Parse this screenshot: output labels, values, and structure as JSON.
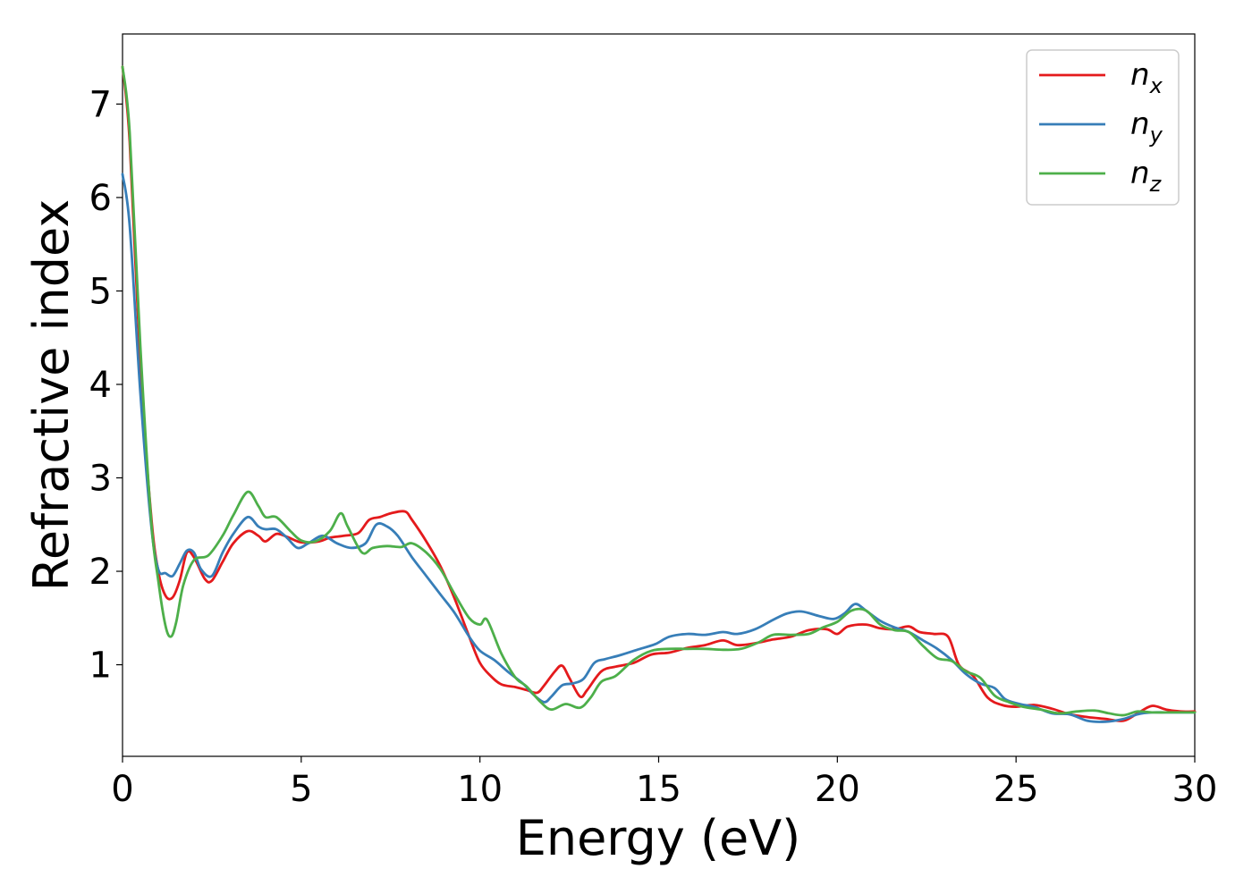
{
  "chart_data": {
    "type": "line",
    "xlabel": "Energy (eV)",
    "ylabel": "Refractive index",
    "xlim": [
      0,
      30
    ],
    "ylim": [
      0.02,
      7.75
    ],
    "xticks": [
      0,
      5,
      10,
      15,
      20,
      25,
      30
    ],
    "yticks": [
      1,
      2,
      3,
      4,
      5,
      6,
      7
    ],
    "xtick_labels": [
      "0",
      "5",
      "10",
      "15",
      "20",
      "25",
      "30"
    ],
    "ytick_labels": [
      "1",
      "2",
      "3",
      "4",
      "5",
      "6",
      "7"
    ],
    "grid": false,
    "legend_position": "top-right",
    "series": [
      {
        "name": "n",
        "subscript": "x",
        "color": "#e41a1c",
        "points": [
          [
            0,
            7.4
          ],
          [
            0.2,
            6.6
          ],
          [
            0.5,
            4.2
          ],
          [
            0.8,
            2.6
          ],
          [
            1.0,
            2.0
          ],
          [
            1.2,
            1.74
          ],
          [
            1.4,
            1.72
          ],
          [
            1.6,
            1.9
          ],
          [
            1.8,
            2.2
          ],
          [
            2.0,
            2.15
          ],
          [
            2.3,
            1.92
          ],
          [
            2.5,
            1.9
          ],
          [
            2.8,
            2.1
          ],
          [
            3.1,
            2.3
          ],
          [
            3.5,
            2.43
          ],
          [
            3.8,
            2.38
          ],
          [
            4.0,
            2.32
          ],
          [
            4.3,
            2.4
          ],
          [
            4.6,
            2.37
          ],
          [
            5.0,
            2.31
          ],
          [
            5.5,
            2.32
          ],
          [
            5.8,
            2.36
          ],
          [
            6.2,
            2.38
          ],
          [
            6.6,
            2.41
          ],
          [
            6.9,
            2.55
          ],
          [
            7.2,
            2.58
          ],
          [
            7.5,
            2.62
          ],
          [
            7.9,
            2.64
          ],
          [
            8.1,
            2.55
          ],
          [
            8.5,
            2.32
          ],
          [
            8.9,
            2.05
          ],
          [
            9.3,
            1.7
          ],
          [
            9.7,
            1.3
          ],
          [
            10.0,
            1.02
          ],
          [
            10.3,
            0.88
          ],
          [
            10.6,
            0.79
          ],
          [
            11.0,
            0.76
          ],
          [
            11.3,
            0.73
          ],
          [
            11.6,
            0.7
          ],
          [
            11.8,
            0.78
          ],
          [
            12.1,
            0.93
          ],
          [
            12.3,
            0.99
          ],
          [
            12.5,
            0.86
          ],
          [
            12.8,
            0.66
          ],
          [
            13.0,
            0.73
          ],
          [
            13.4,
            0.93
          ],
          [
            13.8,
            0.98
          ],
          [
            14.3,
            1.02
          ],
          [
            14.8,
            1.11
          ],
          [
            15.3,
            1.13
          ],
          [
            15.8,
            1.18
          ],
          [
            16.3,
            1.21
          ],
          [
            16.8,
            1.26
          ],
          [
            17.2,
            1.21
          ],
          [
            17.7,
            1.23
          ],
          [
            18.2,
            1.27
          ],
          [
            18.7,
            1.3
          ],
          [
            19.2,
            1.37
          ],
          [
            19.7,
            1.38
          ],
          [
            20.0,
            1.33
          ],
          [
            20.3,
            1.41
          ],
          [
            20.8,
            1.43
          ],
          [
            21.2,
            1.39
          ],
          [
            21.6,
            1.38
          ],
          [
            22.0,
            1.41
          ],
          [
            22.3,
            1.35
          ],
          [
            22.7,
            1.33
          ],
          [
            23.1,
            1.3
          ],
          [
            23.4,
            1.0
          ],
          [
            23.8,
            0.88
          ],
          [
            24.2,
            0.65
          ],
          [
            24.6,
            0.57
          ],
          [
            25.0,
            0.55
          ],
          [
            25.5,
            0.57
          ],
          [
            26.0,
            0.53
          ],
          [
            26.5,
            0.47
          ],
          [
            27.0,
            0.44
          ],
          [
            27.5,
            0.42
          ],
          [
            28.0,
            0.4
          ],
          [
            28.4,
            0.48
          ],
          [
            28.8,
            0.56
          ],
          [
            29.2,
            0.52
          ],
          [
            29.6,
            0.5
          ],
          [
            30.0,
            0.5
          ]
        ]
      },
      {
        "name": "n",
        "subscript": "y",
        "color": "#377eb8",
        "points": [
          [
            0,
            6.25
          ],
          [
            0.2,
            5.7
          ],
          [
            0.5,
            3.9
          ],
          [
            0.8,
            2.5
          ],
          [
            1.0,
            2.02
          ],
          [
            1.2,
            1.98
          ],
          [
            1.4,
            1.95
          ],
          [
            1.6,
            2.08
          ],
          [
            1.8,
            2.22
          ],
          [
            2.0,
            2.2
          ],
          [
            2.2,
            2.02
          ],
          [
            2.5,
            1.95
          ],
          [
            2.8,
            2.2
          ],
          [
            3.1,
            2.4
          ],
          [
            3.5,
            2.58
          ],
          [
            3.8,
            2.48
          ],
          [
            4.0,
            2.45
          ],
          [
            4.3,
            2.45
          ],
          [
            4.6,
            2.36
          ],
          [
            4.9,
            2.25
          ],
          [
            5.2,
            2.3
          ],
          [
            5.6,
            2.38
          ],
          [
            6.0,
            2.3
          ],
          [
            6.4,
            2.25
          ],
          [
            6.8,
            2.3
          ],
          [
            7.1,
            2.5
          ],
          [
            7.4,
            2.48
          ],
          [
            7.7,
            2.38
          ],
          [
            8.1,
            2.15
          ],
          [
            8.5,
            1.95
          ],
          [
            8.9,
            1.75
          ],
          [
            9.3,
            1.55
          ],
          [
            9.7,
            1.3
          ],
          [
            10.0,
            1.15
          ],
          [
            10.4,
            1.05
          ],
          [
            10.8,
            0.92
          ],
          [
            11.2,
            0.8
          ],
          [
            11.5,
            0.68
          ],
          [
            11.8,
            0.6
          ],
          [
            12.0,
            0.66
          ],
          [
            12.3,
            0.78
          ],
          [
            12.6,
            0.8
          ],
          [
            12.9,
            0.85
          ],
          [
            13.2,
            1.02
          ],
          [
            13.5,
            1.06
          ],
          [
            13.9,
            1.1
          ],
          [
            14.4,
            1.16
          ],
          [
            14.9,
            1.22
          ],
          [
            15.3,
            1.3
          ],
          [
            15.8,
            1.33
          ],
          [
            16.3,
            1.32
          ],
          [
            16.8,
            1.35
          ],
          [
            17.2,
            1.33
          ],
          [
            17.7,
            1.38
          ],
          [
            18.2,
            1.48
          ],
          [
            18.6,
            1.55
          ],
          [
            19.0,
            1.57
          ],
          [
            19.5,
            1.52
          ],
          [
            19.9,
            1.49
          ],
          [
            20.2,
            1.55
          ],
          [
            20.5,
            1.65
          ],
          [
            20.8,
            1.58
          ],
          [
            21.2,
            1.47
          ],
          [
            21.6,
            1.4
          ],
          [
            22.0,
            1.35
          ],
          [
            22.4,
            1.26
          ],
          [
            22.8,
            1.17
          ],
          [
            23.2,
            1.05
          ],
          [
            23.6,
            0.9
          ],
          [
            24.0,
            0.8
          ],
          [
            24.4,
            0.75
          ],
          [
            24.7,
            0.63
          ],
          [
            25.1,
            0.58
          ],
          [
            25.5,
            0.55
          ],
          [
            26.0,
            0.48
          ],
          [
            26.5,
            0.47
          ],
          [
            27.0,
            0.4
          ],
          [
            27.5,
            0.39
          ],
          [
            28.0,
            0.42
          ],
          [
            28.4,
            0.47
          ],
          [
            28.8,
            0.49
          ],
          [
            29.2,
            0.49
          ],
          [
            29.6,
            0.49
          ],
          [
            30.0,
            0.49
          ]
        ]
      },
      {
        "name": "n",
        "subscript": "z",
        "color": "#4daf4a",
        "points": [
          [
            0,
            7.4
          ],
          [
            0.2,
            6.7
          ],
          [
            0.5,
            4.4
          ],
          [
            0.8,
            2.55
          ],
          [
            1.0,
            1.9
          ],
          [
            1.2,
            1.42
          ],
          [
            1.35,
            1.3
          ],
          [
            1.5,
            1.45
          ],
          [
            1.7,
            1.85
          ],
          [
            2.0,
            2.12
          ],
          [
            2.4,
            2.17
          ],
          [
            2.8,
            2.38
          ],
          [
            3.1,
            2.6
          ],
          [
            3.5,
            2.85
          ],
          [
            3.8,
            2.7
          ],
          [
            4.0,
            2.58
          ],
          [
            4.3,
            2.58
          ],
          [
            4.7,
            2.43
          ],
          [
            5.0,
            2.33
          ],
          [
            5.4,
            2.32
          ],
          [
            5.8,
            2.43
          ],
          [
            6.1,
            2.62
          ],
          [
            6.3,
            2.48
          ],
          [
            6.7,
            2.2
          ],
          [
            7.0,
            2.25
          ],
          [
            7.4,
            2.27
          ],
          [
            7.8,
            2.26
          ],
          [
            8.1,
            2.3
          ],
          [
            8.5,
            2.2
          ],
          [
            8.9,
            2.02
          ],
          [
            9.3,
            1.75
          ],
          [
            9.7,
            1.5
          ],
          [
            10.0,
            1.43
          ],
          [
            10.2,
            1.48
          ],
          [
            10.6,
            1.12
          ],
          [
            11.0,
            0.86
          ],
          [
            11.3,
            0.77
          ],
          [
            11.7,
            0.6
          ],
          [
            12.0,
            0.52
          ],
          [
            12.4,
            0.58
          ],
          [
            12.8,
            0.54
          ],
          [
            13.1,
            0.65
          ],
          [
            13.4,
            0.82
          ],
          [
            13.8,
            0.88
          ],
          [
            14.3,
            1.05
          ],
          [
            14.8,
            1.15
          ],
          [
            15.3,
            1.17
          ],
          [
            15.8,
            1.17
          ],
          [
            16.3,
            1.17
          ],
          [
            16.8,
            1.16
          ],
          [
            17.3,
            1.17
          ],
          [
            17.8,
            1.24
          ],
          [
            18.2,
            1.32
          ],
          [
            18.7,
            1.32
          ],
          [
            19.2,
            1.33
          ],
          [
            19.6,
            1.4
          ],
          [
            20.0,
            1.46
          ],
          [
            20.4,
            1.58
          ],
          [
            20.8,
            1.58
          ],
          [
            21.2,
            1.43
          ],
          [
            21.6,
            1.37
          ],
          [
            22.0,
            1.35
          ],
          [
            22.4,
            1.2
          ],
          [
            22.8,
            1.07
          ],
          [
            23.2,
            1.04
          ],
          [
            23.6,
            0.93
          ],
          [
            24.0,
            0.86
          ],
          [
            24.4,
            0.67
          ],
          [
            24.8,
            0.6
          ],
          [
            25.2,
            0.55
          ],
          [
            25.7,
            0.52
          ],
          [
            26.2,
            0.48
          ],
          [
            26.7,
            0.5
          ],
          [
            27.2,
            0.51
          ],
          [
            27.6,
            0.48
          ],
          [
            28.0,
            0.46
          ],
          [
            28.4,
            0.5
          ],
          [
            28.8,
            0.49
          ],
          [
            29.2,
            0.49
          ],
          [
            29.6,
            0.49
          ],
          [
            30.0,
            0.49
          ]
        ]
      }
    ]
  }
}
